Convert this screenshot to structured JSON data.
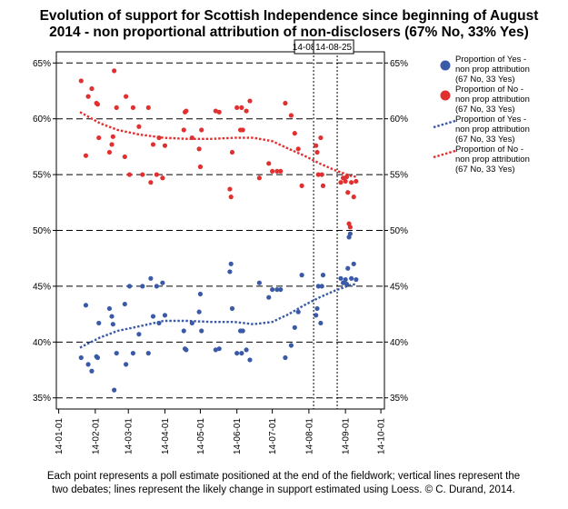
{
  "chart_data": {
    "type": "scatter",
    "title_lines": [
      "Evolution of support for Scottish Independence since beginning of August",
      "2014 -  non proportional attribution of non-disclosers (67% No, 33% Yes)"
    ],
    "caption_lines": [
      "Each point represents a poll estimate positioned at the end of the fieldwork; vertical lines represent the",
      "two debates; lines represent the likely change in support estimated using Loess. © C. Durand, 2014."
    ],
    "xlim": [
      "2013-12-30",
      "2014-10-04"
    ],
    "x_ticks": [
      "14-01-01",
      "14-02-01",
      "14-03-01",
      "14-04-01",
      "14-05-01",
      "14-06-01",
      "14-07-01",
      "14-08-01",
      "14-09-01",
      "14-10-01"
    ],
    "ylim": [
      0.34,
      0.66
    ],
    "y_ticks": [
      0.35,
      0.4,
      0.45,
      0.5,
      0.55,
      0.6,
      0.65
    ],
    "y_tick_labels": [
      "35%",
      "40%",
      "45%",
      "50%",
      "55%",
      "60%",
      "65%"
    ],
    "grid": "horizontal dashed",
    "legend_position": "right",
    "debates": [
      {
        "date": "2014-08-05",
        "label": "14-08"
      },
      {
        "date": "2014-08-25",
        "label": "14-08-25"
      }
    ],
    "colors": {
      "yes": "#3a5aa8",
      "no": "#e03030",
      "grid": "#000000"
    },
    "legend": [
      {
        "kind": "point",
        "color_key": "yes",
        "lines": [
          "Proportion of Yes -",
          "non prop attribution",
          "(67 No, 33 Yes)"
        ]
      },
      {
        "kind": "point",
        "color_key": "no",
        "lines": [
          "Proportion of No -",
          "non prop attribution",
          "(67 No, 33 Yes)"
        ]
      },
      {
        "kind": "line",
        "color_key": "yes",
        "lines": [
          "Proportion of Yes -",
          "non prop attribution",
          "(67 No, 33 Yes)"
        ]
      },
      {
        "kind": "line",
        "color_key": "no",
        "lines": [
          "Proportion of No -",
          "non prop attribution",
          "(67 No, 33 Yes)"
        ]
      }
    ],
    "series": [
      {
        "key": "yes_points",
        "kind": "scatter",
        "color_key": "yes",
        "points": [
          [
            "2014-01-20",
            0.386
          ],
          [
            "2014-01-24",
            0.433
          ],
          [
            "2014-01-26",
            0.38
          ],
          [
            "2014-01-29",
            0.374
          ],
          [
            "2014-02-02",
            0.387
          ],
          [
            "2014-02-03",
            0.386
          ],
          [
            "2014-02-04",
            0.417
          ],
          [
            "2014-02-13",
            0.43
          ],
          [
            "2014-02-15",
            0.423
          ],
          [
            "2014-02-16",
            0.416
          ],
          [
            "2014-02-17",
            0.357
          ],
          [
            "2014-02-19",
            0.39
          ],
          [
            "2014-02-26",
            0.434
          ],
          [
            "2014-02-27",
            0.38
          ],
          [
            "2014-03-02",
            0.45
          ],
          [
            "2014-03-05",
            0.39
          ],
          [
            "2014-03-10",
            0.407
          ],
          [
            "2014-03-13",
            0.45
          ],
          [
            "2014-03-18",
            0.39
          ],
          [
            "2014-03-20",
            0.457
          ],
          [
            "2014-03-22",
            0.423
          ],
          [
            "2014-03-25",
            0.45
          ],
          [
            "2014-03-27",
            0.417
          ],
          [
            "2014-03-30",
            0.453
          ],
          [
            "2014-04-01",
            0.424
          ],
          [
            "2014-04-17",
            0.41
          ],
          [
            "2014-04-18",
            0.394
          ],
          [
            "2014-04-19",
            0.393
          ],
          [
            "2014-04-24",
            0.417
          ],
          [
            "2014-04-30",
            0.427
          ],
          [
            "2014-05-01",
            0.443
          ],
          [
            "2014-05-02",
            0.41
          ],
          [
            "2014-05-14",
            0.393
          ],
          [
            "2014-05-17",
            0.394
          ],
          [
            "2014-05-26",
            0.463
          ],
          [
            "2014-05-27",
            0.47
          ],
          [
            "2014-05-28",
            0.43
          ],
          [
            "2014-06-01",
            0.39
          ],
          [
            "2014-06-04",
            0.41
          ],
          [
            "2014-06-05",
            0.39
          ],
          [
            "2014-06-06",
            0.41
          ],
          [
            "2014-06-09",
            0.393
          ],
          [
            "2014-06-12",
            0.384
          ],
          [
            "2014-06-20",
            0.453
          ],
          [
            "2014-06-28",
            0.44
          ],
          [
            "2014-07-01",
            0.447
          ],
          [
            "2014-07-05",
            0.447
          ],
          [
            "2014-07-08",
            0.447
          ],
          [
            "2014-07-12",
            0.386
          ],
          [
            "2014-07-17",
            0.397
          ],
          [
            "2014-07-20",
            0.413
          ],
          [
            "2014-07-23",
            0.427
          ],
          [
            "2014-07-26",
            0.46
          ],
          [
            "2014-08-07",
            0.424
          ],
          [
            "2014-08-08",
            0.43
          ],
          [
            "2014-08-09",
            0.45
          ],
          [
            "2014-08-11",
            0.417
          ],
          [
            "2014-08-12",
            0.45
          ],
          [
            "2014-08-13",
            0.46
          ],
          [
            "2014-08-28",
            0.457
          ],
          [
            "2014-08-30",
            0.453
          ],
          [
            "2014-09-01",
            0.456
          ],
          [
            "2014-09-02",
            0.452
          ],
          [
            "2014-09-03",
            0.466
          ],
          [
            "2014-09-04",
            0.494
          ],
          [
            "2014-09-05",
            0.497
          ],
          [
            "2014-09-06",
            0.457
          ],
          [
            "2014-09-08",
            0.47
          ],
          [
            "2014-09-10",
            0.456
          ]
        ]
      },
      {
        "key": "no_points",
        "kind": "scatter",
        "color_key": "no",
        "points": [
          [
            "2014-01-20",
            0.634
          ],
          [
            "2014-01-24",
            0.567
          ],
          [
            "2014-01-26",
            0.62
          ],
          [
            "2014-01-29",
            0.627
          ],
          [
            "2014-02-02",
            0.614
          ],
          [
            "2014-02-03",
            0.613
          ],
          [
            "2014-02-04",
            0.583
          ],
          [
            "2014-02-13",
            0.57
          ],
          [
            "2014-02-15",
            0.577
          ],
          [
            "2014-02-16",
            0.584
          ],
          [
            "2014-02-17",
            0.643
          ],
          [
            "2014-02-19",
            0.61
          ],
          [
            "2014-02-26",
            0.566
          ],
          [
            "2014-02-27",
            0.62
          ],
          [
            "2014-03-02",
            0.55
          ],
          [
            "2014-03-05",
            0.61
          ],
          [
            "2014-03-10",
            0.593
          ],
          [
            "2014-03-13",
            0.55
          ],
          [
            "2014-03-18",
            0.61
          ],
          [
            "2014-03-20",
            0.543
          ],
          [
            "2014-03-22",
            0.577
          ],
          [
            "2014-03-25",
            0.55
          ],
          [
            "2014-03-27",
            0.583
          ],
          [
            "2014-03-30",
            0.547
          ],
          [
            "2014-04-01",
            0.576
          ],
          [
            "2014-04-17",
            0.59
          ],
          [
            "2014-04-18",
            0.606
          ],
          [
            "2014-04-19",
            0.607
          ],
          [
            "2014-04-24",
            0.583
          ],
          [
            "2014-04-30",
            0.573
          ],
          [
            "2014-05-01",
            0.557
          ],
          [
            "2014-05-02",
            0.59
          ],
          [
            "2014-05-14",
            0.607
          ],
          [
            "2014-05-17",
            0.606
          ],
          [
            "2014-05-26",
            0.537
          ],
          [
            "2014-05-27",
            0.53
          ],
          [
            "2014-05-28",
            0.57
          ],
          [
            "2014-06-01",
            0.61
          ],
          [
            "2014-06-04",
            0.59
          ],
          [
            "2014-06-05",
            0.61
          ],
          [
            "2014-06-06",
            0.59
          ],
          [
            "2014-06-09",
            0.607
          ],
          [
            "2014-06-12",
            0.616
          ],
          [
            "2014-06-20",
            0.547
          ],
          [
            "2014-06-28",
            0.56
          ],
          [
            "2014-07-01",
            0.553
          ],
          [
            "2014-07-05",
            0.553
          ],
          [
            "2014-07-08",
            0.553
          ],
          [
            "2014-07-12",
            0.614
          ],
          [
            "2014-07-17",
            0.603
          ],
          [
            "2014-07-20",
            0.587
          ],
          [
            "2014-07-23",
            0.573
          ],
          [
            "2014-07-26",
            0.54
          ],
          [
            "2014-08-07",
            0.576
          ],
          [
            "2014-08-08",
            0.57
          ],
          [
            "2014-08-09",
            0.55
          ],
          [
            "2014-08-11",
            0.583
          ],
          [
            "2014-08-12",
            0.55
          ],
          [
            "2014-08-13",
            0.54
          ],
          [
            "2014-08-28",
            0.543
          ],
          [
            "2014-08-30",
            0.547
          ],
          [
            "2014-09-01",
            0.544
          ],
          [
            "2014-09-02",
            0.548
          ],
          [
            "2014-09-03",
            0.534
          ],
          [
            "2014-09-04",
            0.506
          ],
          [
            "2014-09-05",
            0.503
          ],
          [
            "2014-09-06",
            0.543
          ],
          [
            "2014-09-08",
            0.53
          ],
          [
            "2014-09-10",
            0.544
          ]
        ]
      },
      {
        "key": "yes_loess",
        "kind": "line",
        "color_key": "yes",
        "points": [
          [
            "2014-01-19",
            0.395
          ],
          [
            "2014-02-05",
            0.404
          ],
          [
            "2014-02-20",
            0.41
          ],
          [
            "2014-03-10",
            0.414
          ],
          [
            "2014-03-31",
            0.419
          ],
          [
            "2014-04-20",
            0.419
          ],
          [
            "2014-05-10",
            0.418
          ],
          [
            "2014-05-30",
            0.418
          ],
          [
            "2014-06-15",
            0.416
          ],
          [
            "2014-07-01",
            0.418
          ],
          [
            "2014-07-15",
            0.425
          ],
          [
            "2014-07-28",
            0.433
          ],
          [
            "2014-08-10",
            0.44
          ],
          [
            "2014-08-23",
            0.446
          ],
          [
            "2014-09-05",
            0.451
          ],
          [
            "2014-09-10",
            0.452
          ]
        ]
      },
      {
        "key": "no_loess",
        "kind": "line",
        "color_key": "no",
        "points": [
          [
            "2014-01-19",
            0.606
          ],
          [
            "2014-02-05",
            0.596
          ],
          [
            "2014-02-20",
            0.59
          ],
          [
            "2014-03-10",
            0.586
          ],
          [
            "2014-03-31",
            0.583
          ],
          [
            "2014-04-20",
            0.582
          ],
          [
            "2014-05-10",
            0.582
          ],
          [
            "2014-05-30",
            0.583
          ],
          [
            "2014-06-15",
            0.583
          ],
          [
            "2014-07-01",
            0.58
          ],
          [
            "2014-07-15",
            0.573
          ],
          [
            "2014-07-28",
            0.567
          ],
          [
            "2014-08-10",
            0.56
          ],
          [
            "2014-08-23",
            0.554
          ],
          [
            "2014-09-05",
            0.549
          ],
          [
            "2014-09-10",
            0.548
          ]
        ]
      }
    ]
  }
}
